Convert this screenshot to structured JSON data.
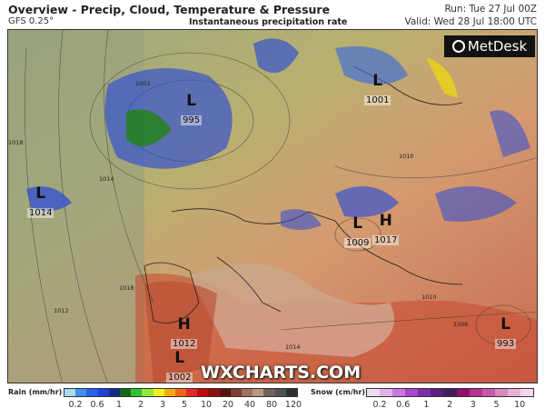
{
  "header": {
    "title": "Overview - Precip, Cloud, Temperature & Pressure",
    "model": "GFS 0.25°",
    "field": "Instantaneous precipitation rate",
    "run": "Run: Tue 27 Jul 00Z",
    "valid": "Valid: Wed 28 Jul 18:00 UTC"
  },
  "map": {
    "pressure_systems": [
      {
        "type": "L",
        "value": "995"
      },
      {
        "type": "L",
        "value": "1001"
      },
      {
        "type": "L",
        "value": "1014"
      },
      {
        "type": "L",
        "value": "1009"
      },
      {
        "type": "H",
        "value": "1017"
      },
      {
        "type": "H",
        "value": "1012"
      },
      {
        "type": "L",
        "value": "1002"
      },
      {
        "type": "L",
        "value": "993"
      }
    ],
    "isobar_labels": [
      "1002",
      "1018",
      "1014",
      "1018",
      "1012",
      "1010",
      "1010",
      "1014",
      "1006"
    ],
    "logo": "MetDesk",
    "watermark": "WXCHARTS.COM"
  },
  "legend": {
    "rain": {
      "label": "Rain (mm/hr)",
      "ticks": [
        "0.2",
        "0.6",
        "1",
        "2",
        "3",
        "5",
        "10",
        "20",
        "40",
        "80",
        "120"
      ],
      "colors": [
        "#a8dcea",
        "#3e8ff0",
        "#2a5fe8",
        "#1e3fd8",
        "#142a8a",
        "#0d6a1a",
        "#33c033",
        "#8ee83a",
        "#f4f01e",
        "#f7a814",
        "#f46414",
        "#e82828",
        "#c00a0a",
        "#901010",
        "#5a1010",
        "#7a4030",
        "#a07060",
        "#b89880",
        "#706060",
        "#505050",
        "#303030"
      ]
    },
    "snow": {
      "label": "Snow (cm/hr)",
      "ticks": [
        "0.2",
        "0.6",
        "1",
        "2",
        "3",
        "5",
        "10"
      ],
      "colors": [
        "#f0dcf0",
        "#e0b0e8",
        "#c878e0",
        "#a848d0",
        "#7a30a8",
        "#5a2080",
        "#40205a",
        "#90106a",
        "#b83090",
        "#c858a8",
        "#d888c0",
        "#e8b0d8",
        "#f4d4ec"
      ]
    }
  }
}
